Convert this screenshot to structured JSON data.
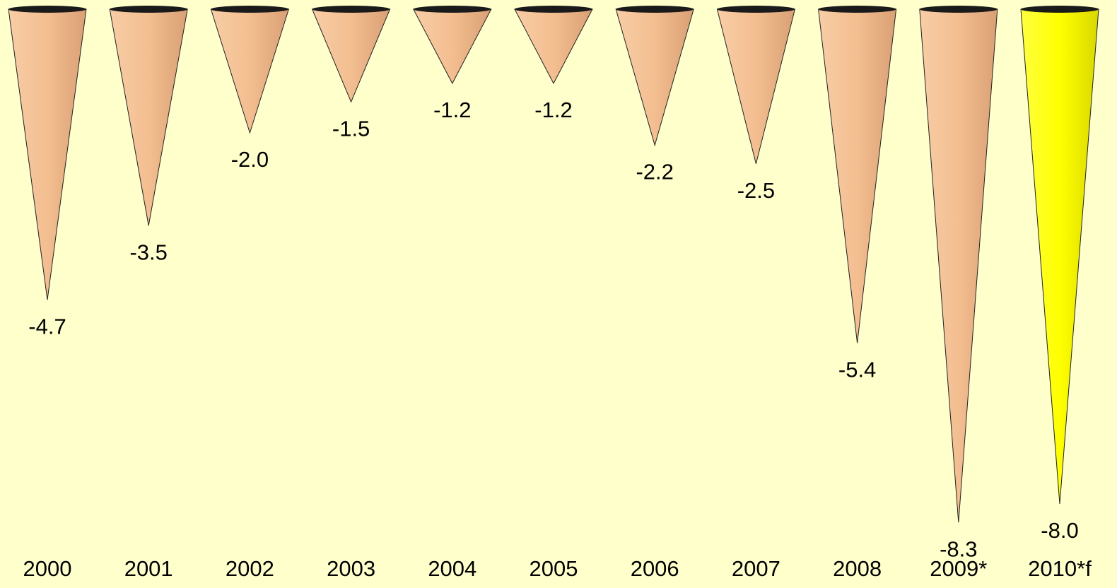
{
  "chart_data": {
    "type": "bar",
    "bar_shape": "cone",
    "categories": [
      "2000",
      "2001",
      "2002",
      "2003",
      "2004",
      "2005",
      "2006",
      "2007",
      "2008",
      "2009*",
      "2010*f"
    ],
    "values": [
      -4.7,
      -3.5,
      -2.0,
      -1.5,
      -1.2,
      -1.2,
      -2.2,
      -2.5,
      -5.4,
      -8.3,
      -8.0
    ],
    "value_labels": [
      "-4.7",
      "-3.5",
      "-2.0",
      "-1.5",
      "-1.2",
      "-1.2",
      "-2.2",
      "-2.5",
      "-5.4",
      "-8.3",
      "-8.0"
    ],
    "highlight_index": 10,
    "colors": {
      "background": "#ffffcc",
      "bar": "#f0b88a",
      "bar_highlight": "#ffff00",
      "cone_top": "#1a1a1a",
      "text": "#000000"
    },
    "title": "",
    "xlabel": "",
    "ylabel": "",
    "grid": false,
    "legend": "none"
  }
}
